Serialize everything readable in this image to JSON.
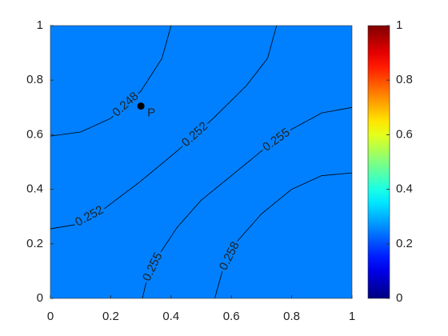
{
  "chart_data": {
    "type": "contour",
    "xlim": [
      0,
      1
    ],
    "ylim": [
      0,
      1
    ],
    "xticks": [
      0,
      0.2,
      0.4,
      0.6,
      0.8,
      1
    ],
    "yticks": [
      0,
      0.2,
      0.4,
      0.6,
      0.8,
      1
    ],
    "fill_color": "#0080ff",
    "colormap": "jet",
    "clim": [
      0,
      1
    ],
    "cticks": [
      0,
      0.2,
      0.4,
      0.6,
      0.8,
      1
    ],
    "contours": [
      {
        "level": 0.248,
        "x": [
          0,
          0.1,
          0.2,
          0.3,
          0.37,
          0.4
        ],
        "y": [
          0.595,
          0.61,
          0.66,
          0.76,
          0.88,
          1
        ]
      },
      {
        "level": 0.252,
        "x": [
          0.75,
          0.72,
          0.65,
          0.54,
          0.42,
          0.3,
          0.18,
          0.08,
          0
        ],
        "y": [
          1,
          0.88,
          0.78,
          0.66,
          0.54,
          0.43,
          0.33,
          0.27,
          0.255
        ]
      },
      {
        "level": 0.255,
        "x": [
          1,
          0.9,
          0.8,
          0.7,
          0.6,
          0.5,
          0.42,
          0.36,
          0.32,
          0.305
        ],
        "y": [
          0.7,
          0.68,
          0.62,
          0.54,
          0.45,
          0.36,
          0.26,
          0.16,
          0.07,
          0
        ]
      },
      {
        "level": 0.258,
        "x": [
          1,
          0.9,
          0.8,
          0.7,
          0.62,
          0.57,
          0.545
        ],
        "y": [
          0.46,
          0.45,
          0.4,
          0.31,
          0.21,
          0.1,
          0
        ]
      }
    ],
    "points": [
      {
        "label": "P",
        "x": 0.3,
        "y": 0.705
      }
    ]
  }
}
